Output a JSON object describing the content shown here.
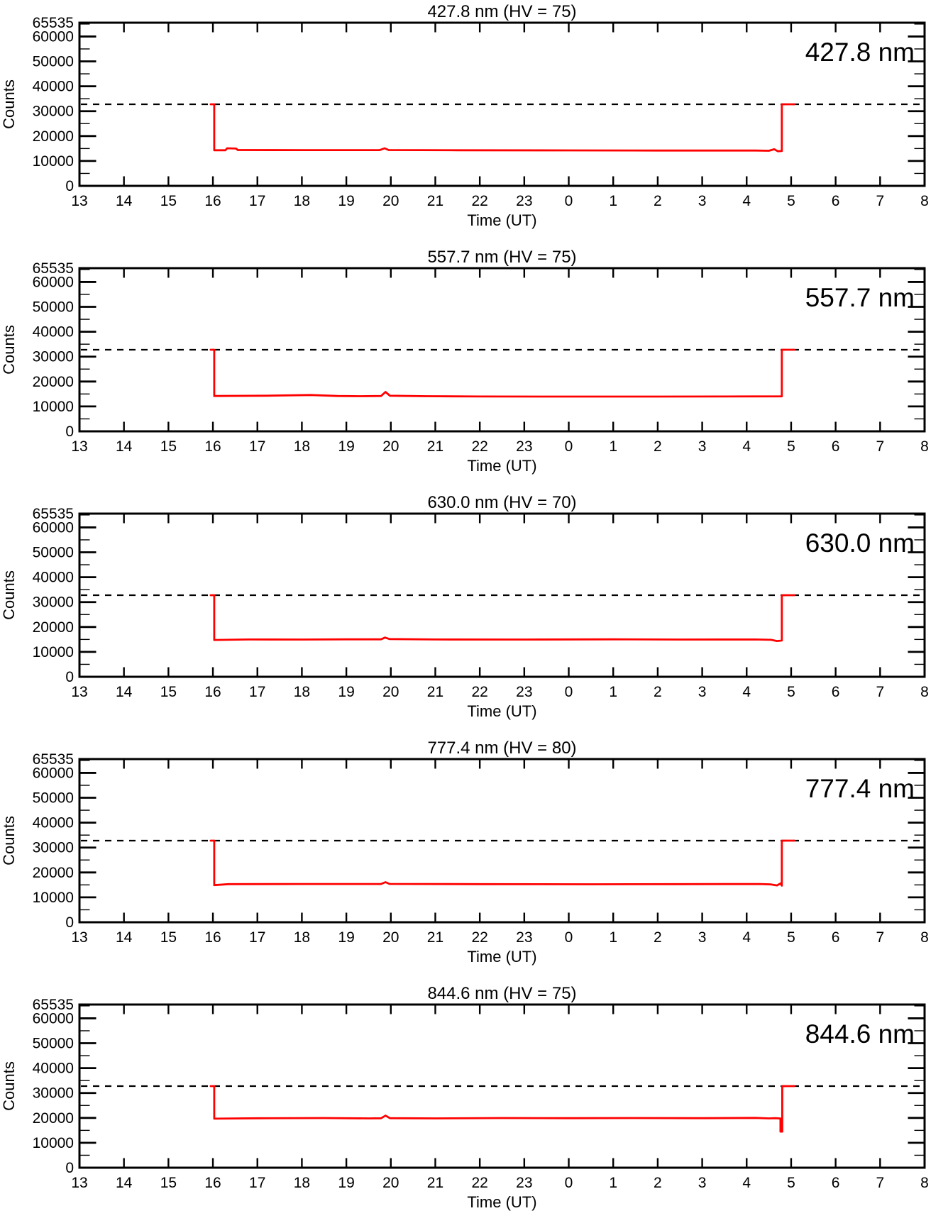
{
  "page": {
    "background": "#ffffff",
    "axis_color": "#000000",
    "line_color": "#ff0000"
  },
  "chart_data": [
    {
      "type": "line",
      "title": "427.8 nm (HV = 75)",
      "inplot_label": "427.8 nm",
      "xlabel": "Time (UT)",
      "ylabel": "Counts",
      "x_tick_labels": [
        "13",
        "14",
        "15",
        "16",
        "17",
        "18",
        "19",
        "20",
        "21",
        "22",
        "23",
        "0",
        "1",
        "2",
        "3",
        "4",
        "5",
        "6",
        "7",
        "8"
      ],
      "x_range_hours": [
        13,
        32
      ],
      "ylim": [
        0,
        65535
      ],
      "y_major_ticks": [
        0,
        10000,
        20000,
        30000,
        40000,
        50000,
        60000
      ],
      "y_top_label": 65535,
      "y_minor_step": 5000,
      "threshold": 32767,
      "threshold_style": "dashed",
      "legend": "none",
      "grid": "off",
      "series": [
        {
          "name": "counts",
          "color": "#ff0000",
          "points": [
            [
              15.95,
              32767
            ],
            [
              16.03,
              32767
            ],
            [
              16.03,
              14300
            ],
            [
              16.28,
              14300
            ],
            [
              16.32,
              15100
            ],
            [
              16.52,
              15000
            ],
            [
              16.56,
              14400
            ],
            [
              18.0,
              14350
            ],
            [
              19.75,
              14350
            ],
            [
              19.86,
              15100
            ],
            [
              19.95,
              14400
            ],
            [
              21.5,
              14300
            ],
            [
              24.0,
              14250
            ],
            [
              26.0,
              14200
            ],
            [
              28.2,
              14200
            ],
            [
              28.5,
              14100
            ],
            [
              28.62,
              14700
            ],
            [
              28.7,
              13900
            ],
            [
              28.79,
              14000
            ],
            [
              28.79,
              32767
            ],
            [
              29.07,
              32767
            ]
          ]
        }
      ]
    },
    {
      "type": "line",
      "title": "557.7 nm (HV = 75)",
      "inplot_label": "557.7 nm",
      "xlabel": "Time (UT)",
      "ylabel": "Counts",
      "x_tick_labels": [
        "13",
        "14",
        "15",
        "16",
        "17",
        "18",
        "19",
        "20",
        "21",
        "22",
        "23",
        "0",
        "1",
        "2",
        "3",
        "4",
        "5",
        "6",
        "7",
        "8"
      ],
      "x_range_hours": [
        13,
        32
      ],
      "ylim": [
        0,
        65535
      ],
      "y_major_ticks": [
        0,
        10000,
        20000,
        30000,
        40000,
        50000,
        60000
      ],
      "y_top_label": 65535,
      "y_minor_step": 5000,
      "threshold": 32767,
      "threshold_style": "dashed",
      "legend": "none",
      "grid": "off",
      "series": [
        {
          "name": "counts",
          "color": "#ff0000",
          "points": [
            [
              15.95,
              32767
            ],
            [
              16.03,
              32767
            ],
            [
              16.03,
              14200
            ],
            [
              17.2,
              14300
            ],
            [
              18.2,
              14600
            ],
            [
              18.8,
              14200
            ],
            [
              19.3,
              14100
            ],
            [
              19.78,
              14200
            ],
            [
              19.88,
              15800
            ],
            [
              19.98,
              14300
            ],
            [
              20.8,
              14100
            ],
            [
              22.0,
              14000
            ],
            [
              24.0,
              13950
            ],
            [
              26.0,
              13950
            ],
            [
              27.5,
              14000
            ],
            [
              28.79,
              14050
            ],
            [
              28.79,
              32767
            ],
            [
              29.07,
              32767
            ]
          ]
        }
      ]
    },
    {
      "type": "line",
      "title": "630.0 nm (HV = 70)",
      "inplot_label": "630.0 nm",
      "xlabel": "Time (UT)",
      "ylabel": "Counts",
      "x_tick_labels": [
        "13",
        "14",
        "15",
        "16",
        "17",
        "18",
        "19",
        "20",
        "21",
        "22",
        "23",
        "0",
        "1",
        "2",
        "3",
        "4",
        "5",
        "6",
        "7",
        "8"
      ],
      "x_range_hours": [
        13,
        32
      ],
      "ylim": [
        0,
        65535
      ],
      "y_major_ticks": [
        0,
        10000,
        20000,
        30000,
        40000,
        50000,
        60000
      ],
      "y_top_label": 65535,
      "y_minor_step": 5000,
      "threshold": 32767,
      "threshold_style": "dashed",
      "legend": "none",
      "grid": "off",
      "series": [
        {
          "name": "counts",
          "color": "#ff0000",
          "points": [
            [
              15.95,
              32767
            ],
            [
              16.03,
              32767
            ],
            [
              16.03,
              14800
            ],
            [
              16.8,
              15000
            ],
            [
              18.0,
              14950
            ],
            [
              19.0,
              15050
            ],
            [
              19.78,
              15050
            ],
            [
              19.87,
              15750
            ],
            [
              19.97,
              15150
            ],
            [
              21.0,
              15000
            ],
            [
              23.0,
              14950
            ],
            [
              25.0,
              15050
            ],
            [
              26.5,
              14950
            ],
            [
              28.2,
              15000
            ],
            [
              28.55,
              14850
            ],
            [
              28.68,
              14350
            ],
            [
              28.79,
              14550
            ],
            [
              28.79,
              32767
            ],
            [
              29.07,
              32767
            ]
          ]
        }
      ]
    },
    {
      "type": "line",
      "title": "777.4 nm (HV = 80)",
      "inplot_label": "777.4 nm",
      "xlabel": "Time (UT)",
      "ylabel": "Counts",
      "x_tick_labels": [
        "13",
        "14",
        "15",
        "16",
        "17",
        "18",
        "19",
        "20",
        "21",
        "22",
        "23",
        "0",
        "1",
        "2",
        "3",
        "4",
        "5",
        "6",
        "7",
        "8"
      ],
      "x_range_hours": [
        13,
        32
      ],
      "ylim": [
        0,
        65535
      ],
      "y_major_ticks": [
        0,
        10000,
        20000,
        30000,
        40000,
        50000,
        60000
      ],
      "y_top_label": 65535,
      "y_minor_step": 5000,
      "threshold": 32767,
      "threshold_style": "dashed",
      "legend": "none",
      "grid": "off",
      "series": [
        {
          "name": "counts",
          "color": "#ff0000",
          "points": [
            [
              15.95,
              32767
            ],
            [
              16.03,
              32767
            ],
            [
              16.03,
              14900
            ],
            [
              16.35,
              15300
            ],
            [
              18.0,
              15350
            ],
            [
              19.78,
              15350
            ],
            [
              19.88,
              16100
            ],
            [
              19.97,
              15400
            ],
            [
              22.0,
              15300
            ],
            [
              24.5,
              15250
            ],
            [
              26.5,
              15300
            ],
            [
              28.3,
              15350
            ],
            [
              28.55,
              15200
            ],
            [
              28.68,
              14800
            ],
            [
              28.76,
              15600
            ],
            [
              28.79,
              14700
            ],
            [
              28.79,
              32767
            ],
            [
              29.07,
              32767
            ]
          ]
        }
      ]
    },
    {
      "type": "line",
      "title": "844.6 nm (HV = 75)",
      "inplot_label": "844.6 nm",
      "xlabel": "Time (UT)",
      "ylabel": "Counts",
      "x_tick_labels": [
        "13",
        "14",
        "15",
        "16",
        "17",
        "18",
        "19",
        "20",
        "21",
        "22",
        "23",
        "0",
        "1",
        "2",
        "3",
        "4",
        "5",
        "6",
        "7",
        "8"
      ],
      "x_range_hours": [
        13,
        32
      ],
      "ylim": [
        0,
        65535
      ],
      "y_major_ticks": [
        0,
        10000,
        20000,
        30000,
        40000,
        50000,
        60000
      ],
      "y_top_label": 65535,
      "y_minor_step": 5000,
      "threshold": 32767,
      "threshold_style": "dashed",
      "legend": "none",
      "grid": "off",
      "series": [
        {
          "name": "counts",
          "color": "#ff0000",
          "points": [
            [
              15.95,
              32767
            ],
            [
              16.03,
              32767
            ],
            [
              16.03,
              19700
            ],
            [
              17.0,
              19850
            ],
            [
              18.5,
              19950
            ],
            [
              19.5,
              19800
            ],
            [
              19.78,
              19850
            ],
            [
              19.88,
              20900
            ],
            [
              19.98,
              19900
            ],
            [
              21.0,
              19800
            ],
            [
              22.5,
              19950
            ],
            [
              24.0,
              19900
            ],
            [
              25.5,
              19950
            ],
            [
              27.0,
              19900
            ],
            [
              28.2,
              20000
            ],
            [
              28.5,
              19800
            ],
            [
              28.65,
              19900
            ],
            [
              28.76,
              19750
            ],
            [
              28.76,
              14500
            ],
            [
              28.8,
              14500
            ],
            [
              28.8,
              32767
            ],
            [
              29.07,
              32767
            ]
          ]
        }
      ]
    }
  ]
}
